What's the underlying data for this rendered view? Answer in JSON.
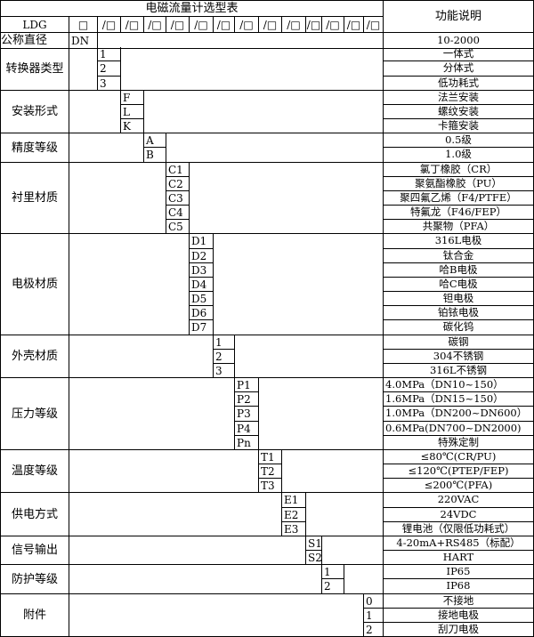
{
  "title": "电磁流量计选型表",
  "function_header": "功能说明",
  "header_row": {
    "model": "LDG",
    "first_box": "□",
    "boxes": [
      "/□",
      "/□",
      "/□",
      "/□",
      "/□",
      "/□",
      "/□",
      "/□",
      "/□",
      "/□",
      "/□",
      "/□",
      "/□"
    ]
  },
  "nominal": {
    "label": "公称直径",
    "code": "DN",
    "desc": "10-2000"
  },
  "groups": [
    {
      "label": "转换器类型",
      "col": 0,
      "items": [
        {
          "code": "1",
          "desc": "一体式"
        },
        {
          "code": "2",
          "desc": "分体式"
        },
        {
          "code": "3",
          "desc": "低功耗式"
        }
      ]
    },
    {
      "label": "安装形式",
      "col": 1,
      "items": [
        {
          "code": "F",
          "desc": "法兰安装"
        },
        {
          "code": "L",
          "desc": "螺纹安装"
        },
        {
          "code": "K",
          "desc": "卡箍安装"
        }
      ]
    },
    {
      "label": "精度等级",
      "col": 2,
      "items": [
        {
          "code": "A",
          "desc": "0.5级"
        },
        {
          "code": "B",
          "desc": "1.0级"
        }
      ]
    },
    {
      "label": "衬里材质",
      "col": 3,
      "items": [
        {
          "code": "C1",
          "desc": "氯丁橡胶（CR）"
        },
        {
          "code": "C2",
          "desc": "聚氨酯橡胶（PU）"
        },
        {
          "code": "C3",
          "desc": "聚四氟乙烯（F4/PTFE）"
        },
        {
          "code": "C4",
          "desc": "特氟龙（F46/FEP）"
        },
        {
          "code": "C5",
          "desc": "共聚物（PFA）"
        }
      ]
    },
    {
      "label": "电极材质",
      "col": 4,
      "items": [
        {
          "code": "D1",
          "desc": "316L电极"
        },
        {
          "code": "D2",
          "desc": "钛合金"
        },
        {
          "code": "D3",
          "desc": "哈B电极"
        },
        {
          "code": "D4",
          "desc": "哈C电极"
        },
        {
          "code": "D5",
          "desc": "钽电极"
        },
        {
          "code": "D6",
          "desc": "铂铱电极"
        },
        {
          "code": "D7",
          "desc": "碳化钨"
        }
      ]
    },
    {
      "label": "外壳材质",
      "col": 5,
      "items": [
        {
          "code": "1",
          "desc": "碳钢"
        },
        {
          "code": "2",
          "desc": "304不锈钢"
        },
        {
          "code": "3",
          "desc": "316L不锈钢"
        }
      ]
    },
    {
      "label": "压力等级",
      "col": 6,
      "items": [
        {
          "code": "P1",
          "desc": "4.0MPa（DN10~150）",
          "left": true
        },
        {
          "code": "P2",
          "desc": "1.6MPa（DN15~150）",
          "left": true
        },
        {
          "code": "P3",
          "desc": "1.0MPa（DN200~DN600）",
          "left": true
        },
        {
          "code": "P4",
          "desc": "0.6MPa(DN700~DN2000)",
          "left": true
        },
        {
          "code": "Pn",
          "desc": "特殊定制"
        }
      ]
    },
    {
      "label": "温度等级",
      "col": 7,
      "items": [
        {
          "code": "T1",
          "desc": "≤80℃(CR/PU)"
        },
        {
          "code": "T2",
          "desc": "≤120℃(PTEP/FEP)"
        },
        {
          "code": "T3",
          "desc": "≤200℃(PFA)"
        }
      ]
    },
    {
      "label": "供电方式",
      "col": 8,
      "items": [
        {
          "code": "E1",
          "desc": "220VAC"
        },
        {
          "code": "E2",
          "desc": "24VDC"
        },
        {
          "code": "E3",
          "desc": "锂电池（仅限低功耗式）"
        }
      ]
    },
    {
      "label": "信号输出",
      "col": 9,
      "items": [
        {
          "code": "S1",
          "desc": "4-20mA+RS485（标配）"
        },
        {
          "code": "S2",
          "desc": "HART"
        }
      ]
    },
    {
      "label": "防护等级",
      "col": 10,
      "items": [
        {
          "code": "1",
          "desc": "IP65"
        },
        {
          "code": "2",
          "desc": "IP68"
        }
      ]
    },
    {
      "label": "附件",
      "col": 12,
      "items": [
        {
          "code": "0",
          "desc": "不接地"
        },
        {
          "code": "1",
          "desc": "接地电极"
        },
        {
          "code": "2",
          "desc": "刮刀电极"
        }
      ]
    }
  ]
}
